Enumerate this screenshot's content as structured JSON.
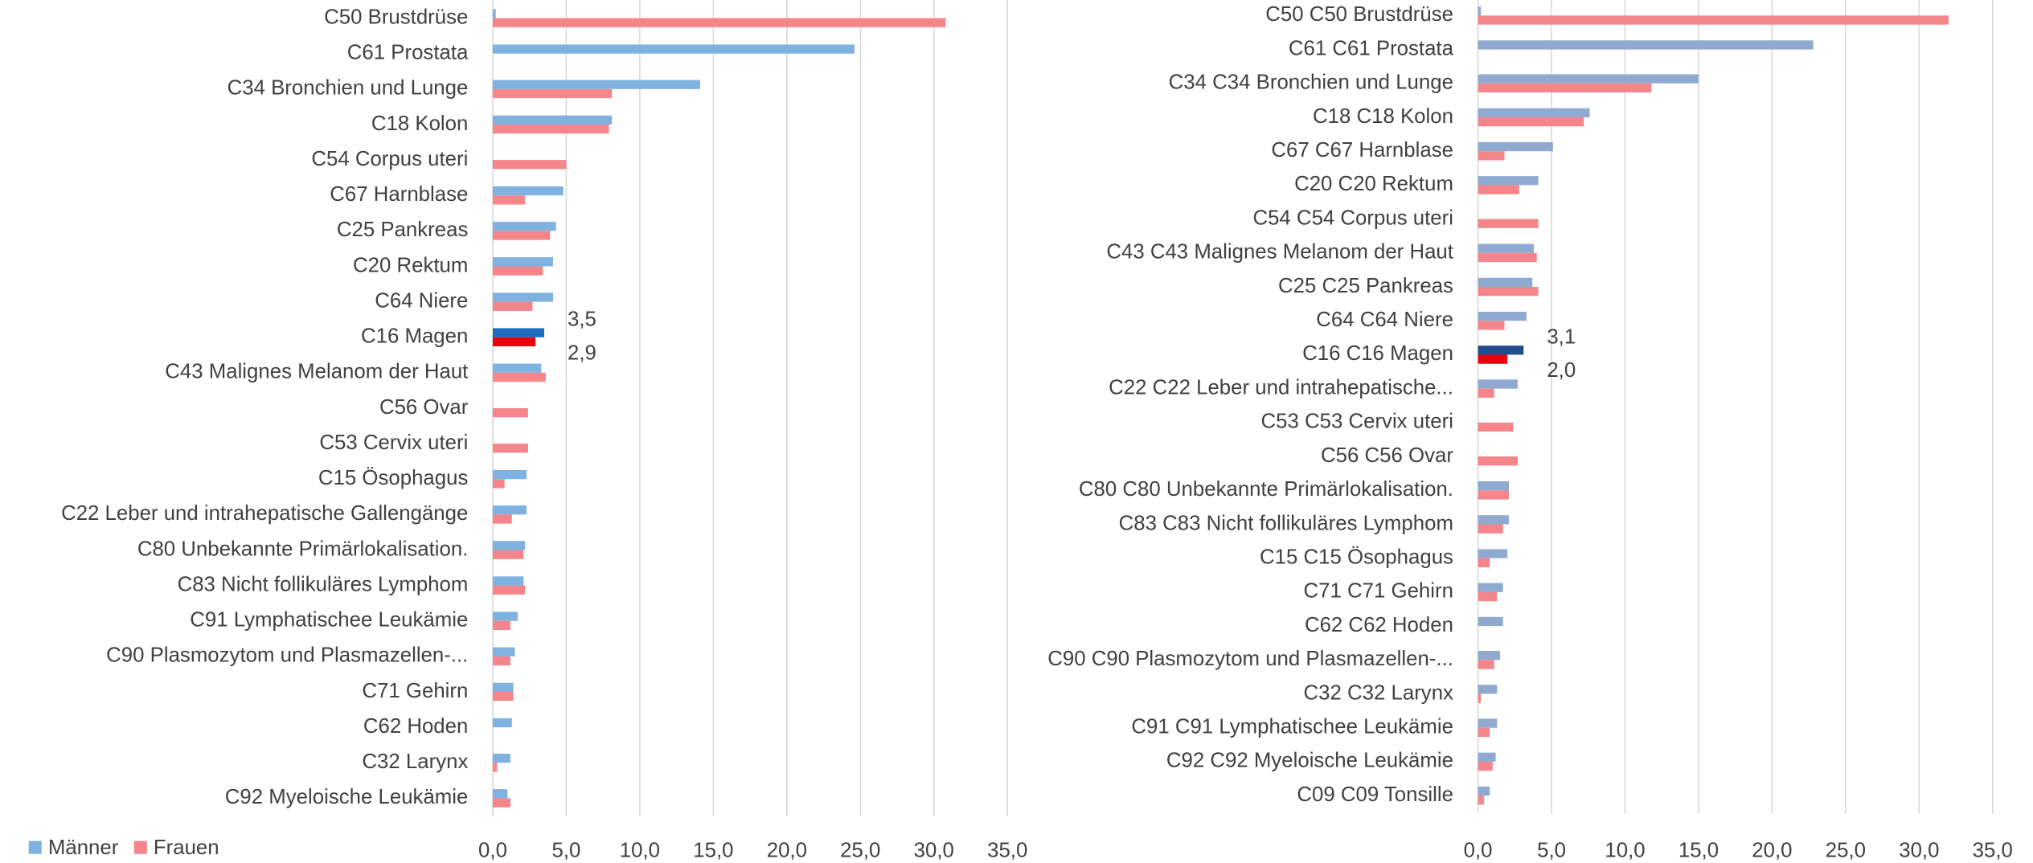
{
  "chart_data": [
    {
      "type": "hbar",
      "categories": [
        "C50 Brustdrüse",
        "C61 Prostata",
        "C34 Bronchien und Lunge",
        "C18 Kolon",
        "C54 Corpus uteri",
        "C67 Harnblase",
        "C25 Pankreas",
        "C20 Rektum",
        "C64 Niere",
        "C16 Magen",
        "C43 Malignes Melanom der Haut",
        "C56 Ovar",
        "C53 Cervix uteri",
        "C15 Ösophagus",
        "C22 Leber und intrahepatische Gallengänge",
        "C80 Unbekannte Primärlokalisation.",
        "C83 Nicht follikuläres Lymphom",
        "C91 Lymphatischee Leukämie",
        "C90 Plasmozytom und Plasmazellen-...",
        "C71 Gehirn",
        "C62 Hoden",
        "C32 Larynx",
        "C92 Myeloische Leukämie"
      ],
      "series": [
        {
          "name": "Männer",
          "color": "#7fb2e0",
          "highlight_color": "#1f6bbf",
          "values": [
            0.2,
            24.6,
            14.1,
            8.1,
            null,
            4.8,
            4.3,
            4.1,
            4.1,
            3.5,
            3.3,
            null,
            null,
            2.3,
            2.3,
            2.2,
            2.1,
            1.7,
            1.5,
            1.4,
            1.3,
            1.2,
            1.0
          ],
          "value_labels": [
            null,
            null,
            null,
            null,
            null,
            null,
            null,
            null,
            null,
            "3,5",
            null,
            null,
            null,
            null,
            null,
            null,
            null,
            null,
            null,
            null,
            null,
            null,
            null
          ]
        },
        {
          "name": "Frauen",
          "color": "#f4858a",
          "highlight_color": "#e8000b",
          "values": [
            30.8,
            null,
            8.1,
            7.9,
            5.0,
            2.2,
            3.9,
            3.4,
            2.7,
            2.9,
            3.6,
            2.4,
            2.4,
            0.8,
            1.3,
            2.1,
            2.2,
            1.2,
            1.2,
            1.4,
            null,
            0.3,
            1.2
          ],
          "value_labels": [
            null,
            null,
            null,
            null,
            null,
            null,
            null,
            null,
            null,
            "2,9",
            null,
            null,
            null,
            null,
            null,
            null,
            null,
            null,
            null,
            null,
            null,
            null,
            null
          ]
        }
      ],
      "xlim": [
        0,
        35
      ],
      "xticks": [
        {
          "value": 0,
          "label": "0,0"
        },
        {
          "value": 5,
          "label": "5,0"
        },
        {
          "value": 10,
          "label": "10,0"
        },
        {
          "value": 15,
          "label": "15,0"
        },
        {
          "value": 20,
          "label": "20,0"
        },
        {
          "value": 25,
          "label": "25,0"
        },
        {
          "value": 30,
          "label": "30,0"
        },
        {
          "value": 35,
          "label": "35,0"
        }
      ],
      "grid": true,
      "legend": "bottom-left"
    },
    {
      "type": "hbar",
      "categories": [
        "C50 C50 Brustdrüse",
        "C61 C61 Prostata",
        "C34 C34 Bronchien und Lunge",
        "C18 C18 Kolon",
        "C67 C67 Harnblase",
        "C20 C20 Rektum",
        "C54 C54 Corpus uteri",
        "C43 C43 Malignes Melanom der Haut",
        "C25 C25 Pankreas",
        "C64 C64 Niere",
        "C16 C16 Magen",
        "C22 C22 Leber und intrahepatische...",
        "C53 C53 Cervix uteri",
        "C56 C56 Ovar",
        "C80 C80 Unbekannte Primärlokalisation.",
        "C83 C83 Nicht follikuläres Lymphom",
        "C15 C15 Ösophagus",
        "C71 C71 Gehirn",
        "C62 C62 Hoden",
        "C90 C90 Plasmozytom und Plasmazellen-...",
        "C32 C32 Larynx",
        "C91 C91 Lymphatischee Leukämie",
        "C92 C92 Myeloische Leukämie",
        "C09 C09 Tonsille"
      ],
      "series": [
        {
          "color": "#8fa9d0",
          "highlight_color": "#1f4e8c",
          "values": [
            0.2,
            22.8,
            15.0,
            7.6,
            5.1,
            4.1,
            null,
            3.8,
            3.7,
            3.3,
            3.1,
            2.7,
            null,
            null,
            2.1,
            2.1,
            2.0,
            1.7,
            1.7,
            1.5,
            1.3,
            1.3,
            1.2,
            0.8
          ],
          "value_labels": [
            null,
            null,
            null,
            null,
            null,
            null,
            null,
            null,
            null,
            null,
            "3,1",
            null,
            null,
            null,
            null,
            null,
            null,
            null,
            null,
            null,
            null,
            null,
            null,
            null
          ]
        },
        {
          "color": "#f4858a",
          "highlight_color": "#e8000b",
          "values": [
            32.0,
            null,
            11.8,
            7.2,
            1.8,
            2.8,
            4.1,
            4.0,
            4.1,
            1.8,
            2.0,
            1.1,
            2.4,
            2.7,
            2.1,
            1.7,
            0.8,
            1.3,
            null,
            1.1,
            0.2,
            0.8,
            1.0,
            0.4
          ],
          "value_labels": [
            null,
            null,
            null,
            null,
            null,
            null,
            null,
            null,
            null,
            null,
            "2,0",
            null,
            null,
            null,
            null,
            null,
            null,
            null,
            null,
            null,
            null,
            null,
            null,
            null
          ]
        }
      ],
      "xlim": [
        0,
        35
      ],
      "xticks": [
        {
          "value": 0,
          "label": "0,0"
        },
        {
          "value": 5,
          "label": "5,0"
        },
        {
          "value": 10,
          "label": "10,0"
        },
        {
          "value": 15,
          "label": "15,0"
        },
        {
          "value": 20,
          "label": "20,0"
        },
        {
          "value": 25,
          "label": "25,0"
        },
        {
          "value": 30,
          "label": "30,0"
        },
        {
          "value": 35,
          "label": "35,0"
        }
      ],
      "grid": true
    }
  ]
}
